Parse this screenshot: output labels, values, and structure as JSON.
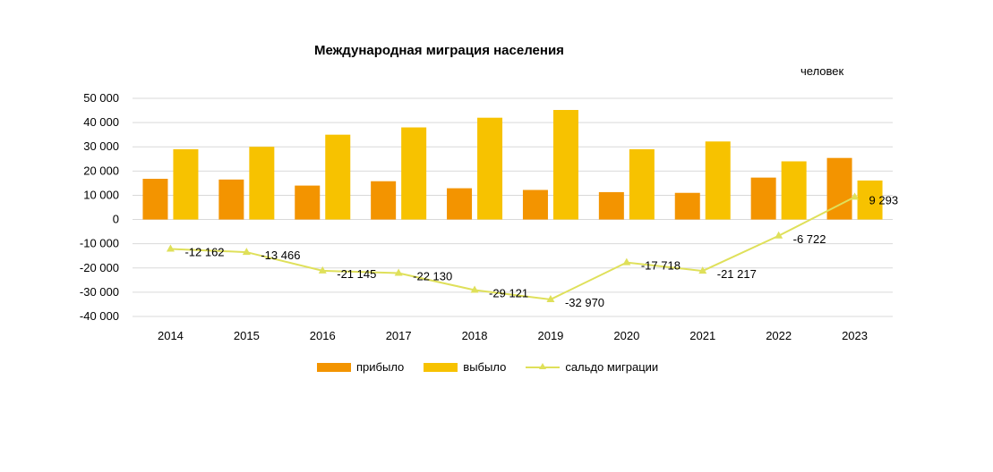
{
  "chart_data": {
    "type": "bar",
    "title": "Международная миграция населения",
    "unit": "человек",
    "categories": [
      "2014",
      "2015",
      "2016",
      "2017",
      "2018",
      "2019",
      "2020",
      "2021",
      "2022",
      "2023"
    ],
    "series": [
      {
        "name": "прибыло",
        "type": "bar",
        "color": "#f39400",
        "values": [
          16800,
          16500,
          14000,
          15800,
          12900,
          12200,
          11300,
          11000,
          17300,
          25400
        ]
      },
      {
        "name": "выбыло",
        "type": "bar",
        "color": "#f7c200",
        "values": [
          29000,
          30000,
          35000,
          38000,
          42000,
          45200,
          29000,
          32200,
          24000,
          16100
        ]
      },
      {
        "name": "сальдо миграции",
        "type": "line",
        "color": "#dfe05a",
        "values": [
          -12162,
          -13466,
          -21145,
          -22130,
          -29121,
          -32970,
          -17718,
          -21217,
          -6722,
          9293
        ],
        "labels": [
          "-12 162",
          "-13 466",
          "-21 145",
          "-22 130",
          "-29 121",
          "-32 970",
          "-17 718",
          "-21 217",
          "-6 722",
          "9 293"
        ]
      }
    ],
    "ylim": [
      -40000,
      50000
    ],
    "yticks": [
      50000,
      40000,
      30000,
      20000,
      10000,
      0,
      -10000,
      -20000,
      -30000,
      -40000
    ],
    "ytick_labels": [
      "50 000",
      "40 000",
      "30 000",
      "20 000",
      "10 000",
      "0",
      "-10 000",
      "-20 000",
      "-30 000",
      "-40 000"
    ],
    "grid": true,
    "legend_position": "bottom"
  }
}
